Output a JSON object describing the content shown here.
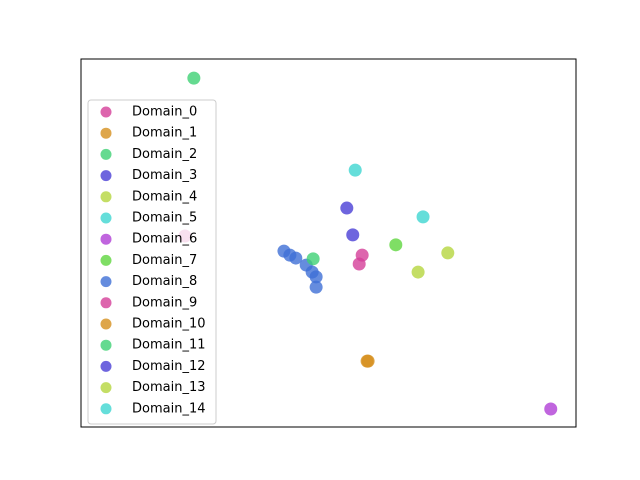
{
  "chart_data": {
    "type": "scatter",
    "xlim": [
      0,
      100
    ],
    "ylim": [
      0,
      100
    ],
    "legend": "upper left",
    "series": [
      {
        "name": "Domain_0",
        "color": "#d43f98",
        "x": [
          21.0,
          56.2
        ],
        "y": [
          51.9,
          44.3
        ]
      },
      {
        "name": "Domain_1",
        "color": "#d6901e",
        "x": [
          58.0
        ],
        "y": [
          17.9
        ]
      },
      {
        "name": "Domain_2",
        "color": "#3ed174",
        "x": [
          22.8
        ],
        "y": [
          94.8
        ]
      },
      {
        "name": "Domain_3",
        "color": "#4a3fd6",
        "x": [
          53.7
        ],
        "y": [
          59.5
        ]
      },
      {
        "name": "Domain_4",
        "color": "#b5d63f",
        "x": [
          74.1
        ],
        "y": [
          47.3
        ]
      },
      {
        "name": "Domain_5",
        "color": "#3fd6d1",
        "x": [
          55.4
        ],
        "y": [
          69.8
        ]
      },
      {
        "name": "Domain_6",
        "color": "#b03fd6",
        "x": [
          94.9
        ],
        "y": [
          4.9
        ]
      },
      {
        "name": "Domain_7",
        "color": "#5fd63f",
        "x": [
          63.6
        ],
        "y": [
          49.5
        ]
      },
      {
        "name": "Domain_8",
        "color": "#3f6fd6",
        "x": [
          41.0,
          42.2,
          43.4,
          45.5,
          46.7,
          47.5,
          47.5
        ],
        "y": [
          47.8,
          46.7,
          45.9,
          44.0,
          42.1,
          40.8,
          38.0
        ]
      },
      {
        "name": "Domain_9",
        "color": "#d43f98",
        "x": [
          56.8
        ],
        "y": [
          46.7
        ]
      },
      {
        "name": "Domain_10",
        "color": "#d6901e",
        "x": [
          57.8
        ],
        "y": [
          17.9
        ]
      },
      {
        "name": "Domain_11",
        "color": "#3ed174",
        "x": [
          46.9
        ],
        "y": [
          45.7
        ]
      },
      {
        "name": "Domain_12",
        "color": "#4a3fd6",
        "x": [
          54.9
        ],
        "y": [
          52.2
        ]
      },
      {
        "name": "Domain_13",
        "color": "#b5d63f",
        "x": [
          68.1
        ],
        "y": [
          42.1
        ]
      },
      {
        "name": "Domain_14",
        "color": "#3fd6d1",
        "x": [
          69.1
        ],
        "y": [
          57.1
        ]
      }
    ]
  }
}
